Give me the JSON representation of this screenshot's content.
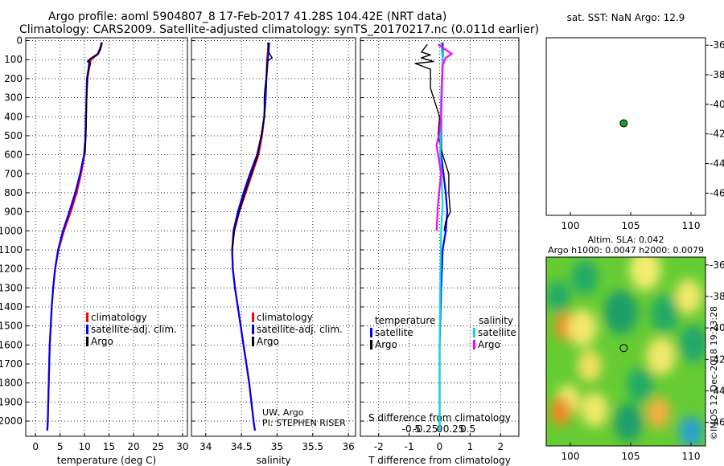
{
  "header": {
    "line1": "Argo profile: aoml 5904807_8 17-Feb-2017 41.28S 104.42E (NRT data)",
    "line2": "Climatology: CARS2009. Satellite-adjusted climatology: synTS_20170217.nc (0.011d earlier)"
  },
  "chart_data": [
    {
      "type": "line",
      "id": "temperature",
      "xlabel": "temperature (deg C)",
      "xlim": [
        -2,
        31
      ],
      "ylim": [
        2080,
        -15
      ],
      "y_inverted": true,
      "xticks": [
        0,
        5,
        10,
        15,
        20,
        25,
        30
      ],
      "yticks": [
        0,
        100,
        200,
        300,
        400,
        500,
        600,
        700,
        800,
        900,
        1000,
        1100,
        1200,
        1300,
        1400,
        1500,
        1600,
        1700,
        1800,
        1900,
        2000
      ],
      "grid": true,
      "legend": {
        "placement": "lower-right",
        "items": [
          {
            "label": "climatology",
            "color": "#ff0000"
          },
          {
            "label": "satellite-adj. clim.",
            "color": "#0000ff"
          },
          {
            "label": "Argo",
            "color": "#000000"
          }
        ]
      },
      "series": [
        {
          "name": "climatology",
          "color": "#ff0000",
          "points": [
            [
              13.6,
              10
            ],
            [
              13.3,
              40
            ],
            [
              12.8,
              70
            ],
            [
              11.3,
              100
            ],
            [
              10.9,
              150
            ],
            [
              10.6,
              200
            ],
            [
              10.4,
              300
            ],
            [
              10.3,
              400
            ],
            [
              10.2,
              500
            ],
            [
              10.0,
              600
            ],
            [
              9.3,
              700
            ],
            [
              8.4,
              800
            ],
            [
              7.2,
              900
            ],
            [
              5.8,
              1000
            ],
            [
              4.7,
              1100
            ],
            [
              4.0,
              1200
            ],
            [
              3.6,
              1300
            ],
            [
              3.3,
              1400
            ],
            [
              3.1,
              1500
            ],
            [
              2.9,
              1600
            ],
            [
              2.8,
              1700
            ],
            [
              2.7,
              1800
            ],
            [
              2.6,
              1900
            ],
            [
              2.5,
              2000
            ],
            [
              2.4,
              2050
            ]
          ]
        },
        {
          "name": "satellite-adj. clim.",
          "color": "#0000ff",
          "points": [
            [
              13.5,
              10
            ],
            [
              13.2,
              40
            ],
            [
              12.7,
              70
            ],
            [
              11.0,
              100
            ],
            [
              10.8,
              150
            ],
            [
              10.5,
              200
            ],
            [
              10.4,
              300
            ],
            [
              10.3,
              400
            ],
            [
              10.2,
              500
            ],
            [
              9.9,
              600
            ],
            [
              9.1,
              700
            ],
            [
              8.1,
              800
            ],
            [
              6.9,
              900
            ],
            [
              5.6,
              1000
            ],
            [
              4.6,
              1100
            ],
            [
              4.0,
              1200
            ],
            [
              3.6,
              1300
            ],
            [
              3.3,
              1400
            ],
            [
              3.1,
              1500
            ],
            [
              2.9,
              1600
            ],
            [
              2.8,
              1700
            ],
            [
              2.7,
              1800
            ],
            [
              2.6,
              1900
            ],
            [
              2.5,
              2000
            ],
            [
              2.4,
              2050
            ]
          ]
        },
        {
          "name": "Argo",
          "color": "#000000",
          "points": [
            [
              13.4,
              10
            ],
            [
              13.2,
              50
            ],
            [
              12.6,
              75
            ],
            [
              11.4,
              90
            ],
            [
              10.6,
              110
            ],
            [
              11.2,
              120
            ],
            [
              10.7,
              160
            ],
            [
              10.5,
              250
            ],
            [
              10.4,
              350
            ],
            [
              10.3,
              500
            ],
            [
              10.1,
              600
            ]
          ]
        }
      ]
    },
    {
      "type": "line",
      "id": "salinity",
      "xlabel": "salinity",
      "xlim": [
        33.8,
        36.1
      ],
      "ylim": [
        2080,
        -15
      ],
      "y_inverted": true,
      "xticks": [
        34,
        34.5,
        35,
        35.5,
        36
      ],
      "xticklabels": [
        "34",
        "34.5",
        "35",
        "35.5",
        "36"
      ],
      "grid": true,
      "legend": {
        "placement": "lower-right",
        "items": [
          {
            "label": "climatology",
            "color": "#ff0000"
          },
          {
            "label": "satellite-adj. clim.",
            "color": "#0000ff"
          },
          {
            "label": "Argo",
            "color": "#000000"
          }
        ]
      },
      "annotation": [
        "UW, Argo",
        "PI: STEPHEN RISER"
      ],
      "series": [
        {
          "name": "climatology",
          "color": "#ff0000",
          "points": [
            [
              34.88,
              10
            ],
            [
              34.87,
              60
            ],
            [
              34.86,
              100
            ],
            [
              34.85,
              200
            ],
            [
              34.84,
              300
            ],
            [
              34.82,
              400
            ],
            [
              34.79,
              500
            ],
            [
              34.74,
              600
            ],
            [
              34.65,
              700
            ],
            [
              34.56,
              800
            ],
            [
              34.47,
              900
            ],
            [
              34.4,
              1000
            ],
            [
              34.37,
              1100
            ],
            [
              34.38,
              1200
            ],
            [
              34.41,
              1300
            ],
            [
              34.45,
              1400
            ],
            [
              34.49,
              1500
            ],
            [
              34.53,
              1600
            ],
            [
              34.57,
              1700
            ],
            [
              34.61,
              1800
            ],
            [
              34.64,
              1900
            ],
            [
              34.67,
              2000
            ],
            [
              34.69,
              2050
            ]
          ]
        },
        {
          "name": "satellite-adj. clim.",
          "color": "#0000ff",
          "points": [
            [
              34.89,
              10
            ],
            [
              34.88,
              60
            ],
            [
              34.87,
              100
            ],
            [
              34.85,
              200
            ],
            [
              34.84,
              300
            ],
            [
              34.82,
              400
            ],
            [
              34.78,
              500
            ],
            [
              34.72,
              600
            ],
            [
              34.62,
              700
            ],
            [
              34.53,
              800
            ],
            [
              34.45,
              900
            ],
            [
              34.39,
              1000
            ],
            [
              34.37,
              1100
            ],
            [
              34.38,
              1200
            ],
            [
              34.41,
              1300
            ],
            [
              34.45,
              1400
            ],
            [
              34.49,
              1500
            ],
            [
              34.53,
              1600
            ],
            [
              34.57,
              1700
            ],
            [
              34.61,
              1800
            ],
            [
              34.64,
              1900
            ],
            [
              34.67,
              2000
            ],
            [
              34.69,
              2050
            ]
          ]
        },
        {
          "name": "Argo",
          "color": "#000000",
          "points": [
            [
              34.87,
              10
            ],
            [
              34.88,
              60
            ],
            [
              34.93,
              90
            ],
            [
              34.86,
              110
            ],
            [
              34.86,
              150
            ],
            [
              34.83,
              250
            ],
            [
              34.82,
              300
            ],
            [
              34.82,
              400
            ],
            [
              34.78,
              500
            ],
            [
              34.73,
              600
            ],
            [
              34.64,
              700
            ],
            [
              34.55,
              800
            ],
            [
              34.47,
              900
            ],
            [
              34.4,
              1000
            ],
            [
              34.37,
              1100
            ]
          ]
        }
      ]
    },
    {
      "type": "line",
      "id": "difference",
      "xlabel": "T difference from climatology",
      "xlabel_top": "S difference from climatology",
      "xlim": [
        -2.6,
        2.6
      ],
      "ylim": [
        2080,
        -15
      ],
      "y_inverted": true,
      "xticks": [
        -2,
        -1,
        0,
        1,
        2
      ],
      "xticks_top": [
        -0.5,
        -0.25,
        0,
        0.25,
        0.5
      ],
      "xticks_top_labels": [
        "-0.5",
        "-0.25",
        "0",
        "0.25",
        "0.5"
      ],
      "grid": true,
      "legend_left": {
        "title": "temperature",
        "items": [
          {
            "label": "satellite",
            "color": "#0000ff"
          },
          {
            "label": "Argo",
            "color": "#000000"
          }
        ]
      },
      "legend_right": {
        "title": "salinity",
        "items": [
          {
            "label": "satellite",
            "color": "#00e0e0"
          },
          {
            "label": "Argo",
            "color": "#ff00ff"
          }
        ]
      },
      "series": [
        {
          "name": "T satellite",
          "color": "#0000ff",
          "points": [
            [
              0.1,
              10
            ],
            [
              0.1,
              100
            ],
            [
              0.05,
              300
            ],
            [
              0.05,
              600
            ],
            [
              0.2,
              800
            ],
            [
              0.25,
              900
            ],
            [
              0.2,
              1000
            ],
            [
              0.1,
              1100
            ],
            [
              0.05,
              1300
            ],
            [
              0,
              1600
            ],
            [
              0,
              2050
            ]
          ]
        },
        {
          "name": "T Argo",
          "color": "#000000",
          "points": [
            [
              -0.4,
              20
            ],
            [
              -0.6,
              60
            ],
            [
              -0.3,
              75
            ],
            [
              -0.6,
              90
            ],
            [
              -0.2,
              110
            ],
            [
              -0.8,
              120
            ],
            [
              -0.3,
              150
            ],
            [
              -0.3,
              250
            ],
            [
              0,
              400
            ],
            [
              -0.05,
              500
            ],
            [
              0.1,
              600
            ],
            [
              0.3,
              700
            ],
            [
              0.3,
              800
            ],
            [
              0.35,
              900
            ],
            [
              0.2,
              950
            ],
            [
              0.15,
              1000
            ]
          ]
        },
        {
          "name": "S satellite",
          "color": "#00e0e0",
          "points": [
            [
              0.05,
              10
            ],
            [
              0.1,
              100
            ],
            [
              0.05,
              300
            ],
            [
              0.02,
              600
            ],
            [
              0.1,
              850
            ],
            [
              0.05,
              1000
            ],
            [
              0.02,
              1300
            ],
            [
              0,
              1600
            ],
            [
              0,
              2050
            ]
          ]
        },
        {
          "name": "S Argo",
          "color": "#ff00ff",
          "points": [
            [
              -0.05,
              20
            ],
            [
              0.4,
              70
            ],
            [
              0.2,
              90
            ],
            [
              0.1,
              130
            ],
            [
              0.05,
              400
            ],
            [
              0.0,
              480
            ],
            [
              -0.1,
              550
            ],
            [
              0.05,
              700
            ],
            [
              -0.05,
              850
            ],
            [
              -0.1,
              1000
            ]
          ]
        }
      ]
    },
    {
      "type": "scatter",
      "id": "sst-map",
      "title": "sat. SST: NaN Argo: 12.9",
      "xlim": [
        98,
        111.2
      ],
      "ylim": [
        -47.5,
        -35.5
      ],
      "xticks": [
        100,
        105,
        110
      ],
      "yticks": [
        -36,
        -38,
        -40,
        -42,
        -44,
        -46
      ],
      "grid": false,
      "points": [
        {
          "x": 104.42,
          "y": -41.28,
          "color": "#22a022"
        }
      ]
    },
    {
      "type": "heatmap",
      "id": "sla-map",
      "title": "Altim. SLA: 0.042",
      "subtitle": "Argo h1000: 0.0047 h2000: 0.0079",
      "xlim": [
        98,
        111.2
      ],
      "ylim": [
        -47.5,
        -35.5
      ],
      "xticks": [
        100,
        105,
        110
      ],
      "yticks": [
        -36,
        -38,
        -40,
        -42,
        -44,
        -46
      ],
      "grid": false,
      "points": [
        {
          "x": 104.42,
          "y": -41.28
        }
      ],
      "base_color": "#66cc33",
      "blobs": [
        {
          "x": 106.2,
          "y": -36.3,
          "r": 1.3,
          "color": "#f2ee70"
        },
        {
          "x": 101.2,
          "y": -36.8,
          "r": 1.1,
          "color": "#22aa66"
        },
        {
          "x": 99.0,
          "y": -38.0,
          "r": 1.0,
          "color": "#22aa66"
        },
        {
          "x": 104.2,
          "y": -39.0,
          "r": 1.4,
          "color": "#1f9e6a"
        },
        {
          "x": 99.6,
          "y": -39.9,
          "r": 0.9,
          "color": "#f08c2a"
        },
        {
          "x": 101.0,
          "y": -40.0,
          "r": 1.2,
          "color": "#f2e86a"
        },
        {
          "x": 107.8,
          "y": -39.1,
          "r": 1.2,
          "color": "#22aa66"
        },
        {
          "x": 109.8,
          "y": -38.0,
          "r": 1.1,
          "color": "#f2e86a"
        },
        {
          "x": 110.2,
          "y": -41.0,
          "r": 1.2,
          "color": "#24a86a"
        },
        {
          "x": 101.6,
          "y": -42.4,
          "r": 1.0,
          "color": "#f2e060"
        },
        {
          "x": 107.5,
          "y": -41.8,
          "r": 1.2,
          "color": "#f2e86a"
        },
        {
          "x": 105.8,
          "y": -43.6,
          "r": 1.1,
          "color": "#22aa66"
        },
        {
          "x": 99.8,
          "y": -44.6,
          "r": 1.0,
          "color": "#f2e86a"
        },
        {
          "x": 99.2,
          "y": -45.3,
          "r": 0.9,
          "color": "#ef8a28"
        },
        {
          "x": 102.0,
          "y": -45.2,
          "r": 1.1,
          "color": "#f2e86a"
        },
        {
          "x": 104.8,
          "y": -46.0,
          "r": 1.2,
          "color": "#1f9e6a"
        },
        {
          "x": 107.3,
          "y": -45.4,
          "r": 1.0,
          "color": "#f2b040"
        },
        {
          "x": 110.0,
          "y": -46.6,
          "r": 1.0,
          "color": "#2aa0d0"
        }
      ]
    }
  ],
  "footer": {
    "watermark": "©IMOS 12-Dec-2018 19:23:28"
  }
}
